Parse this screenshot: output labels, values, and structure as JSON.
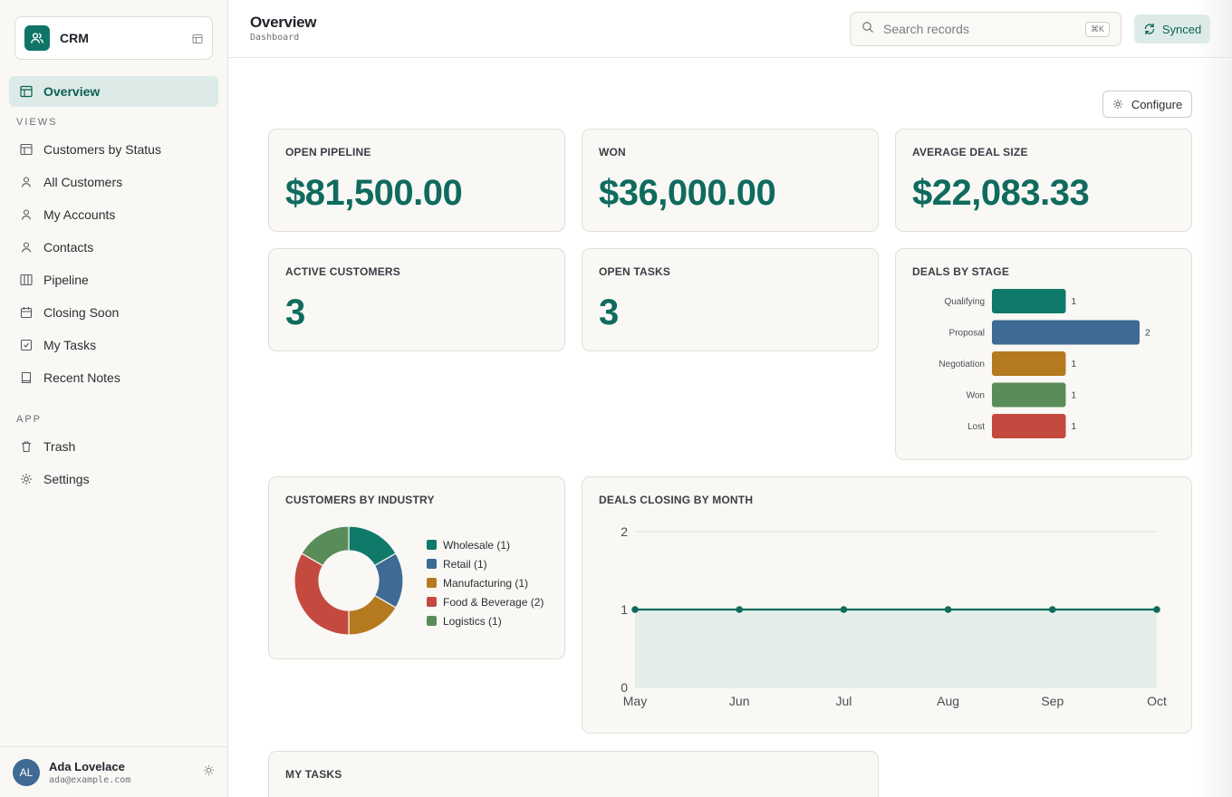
{
  "app": {
    "name": "CRM"
  },
  "nav": {
    "overview": "Overview",
    "views_label": "VIEWS",
    "views": [
      {
        "label": "Customers by Status",
        "icon": "table-icon"
      },
      {
        "label": "All Customers",
        "icon": "user-icon"
      },
      {
        "label": "My Accounts",
        "icon": "user-icon"
      },
      {
        "label": "Contacts",
        "icon": "user-icon"
      },
      {
        "label": "Pipeline",
        "icon": "columns-icon"
      },
      {
        "label": "Closing Soon",
        "icon": "calendar-icon"
      },
      {
        "label": "My Tasks",
        "icon": "checkbox-icon"
      },
      {
        "label": "Recent Notes",
        "icon": "book-icon"
      }
    ],
    "app_label": "APP",
    "app_items": [
      {
        "label": "Trash",
        "icon": "trash-icon"
      },
      {
        "label": "Settings",
        "icon": "gear-icon"
      }
    ]
  },
  "user": {
    "initials": "AL",
    "name": "Ada Lovelace",
    "email": "ada@example.com"
  },
  "header": {
    "title": "Overview",
    "subtitle": "Dashboard",
    "search_placeholder": "Search records",
    "shortcut": "⌘K",
    "sync_status": "Synced"
  },
  "toolbar": {
    "configure_label": "Configure"
  },
  "kpis": {
    "open_pipeline": {
      "label": "OPEN PIPELINE",
      "value": "$81,500.00"
    },
    "won": {
      "label": "WON",
      "value": "$36,000.00"
    },
    "avg_deal": {
      "label": "AVERAGE DEAL SIZE",
      "value": "$22,083.33"
    },
    "active_customers": {
      "label": "ACTIVE CUSTOMERS",
      "value": "3"
    },
    "open_tasks": {
      "label": "OPEN TASKS",
      "value": "3"
    }
  },
  "cards": {
    "deals_by_stage": "DEALS BY STAGE",
    "customers_by_industry": "CUSTOMERS BY INDUSTRY",
    "deals_by_month": "DEALS CLOSING BY MONTH",
    "my_tasks": "MY TASKS"
  },
  "colors": {
    "accent": "#0f6b5e",
    "teal": "#107a6a",
    "blue": "#3d6b94",
    "amber": "#b57a1f",
    "red": "#c4493f",
    "green": "#5a8c59"
  },
  "chart_data": [
    {
      "type": "bar",
      "orientation": "horizontal",
      "title": "DEALS BY STAGE",
      "categories": [
        "Qualifying",
        "Proposal",
        "Negotiation",
        "Won",
        "Lost"
      ],
      "values": [
        1,
        2,
        1,
        1,
        1
      ],
      "colors": [
        "#107a6a",
        "#3d6b94",
        "#b57a1f",
        "#5a8c59",
        "#c4493f"
      ]
    },
    {
      "type": "pie",
      "variant": "donut",
      "title": "CUSTOMERS BY INDUSTRY",
      "labels": [
        "Wholesale",
        "Retail",
        "Manufacturing",
        "Food & Beverage",
        "Logistics"
      ],
      "legend_labels": [
        "Wholesale (1)",
        "Retail (1)",
        "Manufacturing (1)",
        "Food & Beverage (2)",
        "Logistics (1)"
      ],
      "values": [
        1,
        1,
        1,
        2,
        1
      ],
      "colors": [
        "#107a6a",
        "#3d6b94",
        "#b57a1f",
        "#c4493f",
        "#5a8c59"
      ],
      "legend_position": "right"
    },
    {
      "type": "area",
      "title": "DEALS CLOSING BY MONTH",
      "categories": [
        "May",
        "Jun",
        "Jul",
        "Aug",
        "Sep",
        "Oct"
      ],
      "values": [
        1,
        1,
        1,
        1,
        1,
        1
      ],
      "ylim": [
        0,
        2
      ],
      "yticks": [
        0,
        1,
        2
      ],
      "grid": true,
      "color": "#0f6b5e"
    }
  ]
}
